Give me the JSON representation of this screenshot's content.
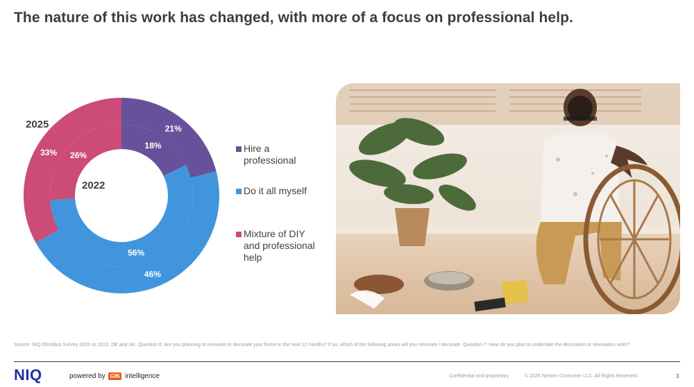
{
  "slide": {
    "title": "The nature of this work has changed, with more of a focus on professional help.",
    "source_note": "Source: NIQ Omnibus Survey 2025 vs 2022, DE and UK. Question 6: Are you planning to renovate or decorate your home in the next 12 months? If so, which of the following areas will you renovate / decorate. Question 7: How do you plan to undertake the decoration or renovation work?"
  },
  "chart_data": {
    "type": "pie",
    "subtype": "nested-donut",
    "categories": [
      "Hire a professional",
      "Do it all myself",
      "Mixture of DIY and professional help"
    ],
    "series": [
      {
        "name": "2025",
        "ring": "outer",
        "values": [
          21,
          46,
          33
        ],
        "labels": [
          "21%",
          "46%",
          "33%"
        ]
      },
      {
        "name": "2022",
        "ring": "inner",
        "values": [
          18,
          56,
          26
        ],
        "labels": [
          "18%",
          "56%",
          "26%"
        ]
      }
    ],
    "colors": [
      "#67519a",
      "#4195dc",
      "#cc4b78"
    ],
    "legend_position": "right"
  },
  "legend": {
    "items": [
      {
        "label": "Hire a professional",
        "color": "#67519a"
      },
      {
        "label": "Do it all myself",
        "color": "#4195dc"
      },
      {
        "label": "Mixture of DIY and professional help",
        "color": "#cc4b78"
      }
    ]
  },
  "footer": {
    "brand": "NIQ",
    "powered_prefix": "powered by",
    "gfk_badge": "GfK",
    "powered_suffix": "intelligence",
    "confidential": "Confidential and proprietary",
    "copyright": "© 2025 Nielsen Consumer LLC. All Rights Reserved.",
    "page_number": "3"
  }
}
